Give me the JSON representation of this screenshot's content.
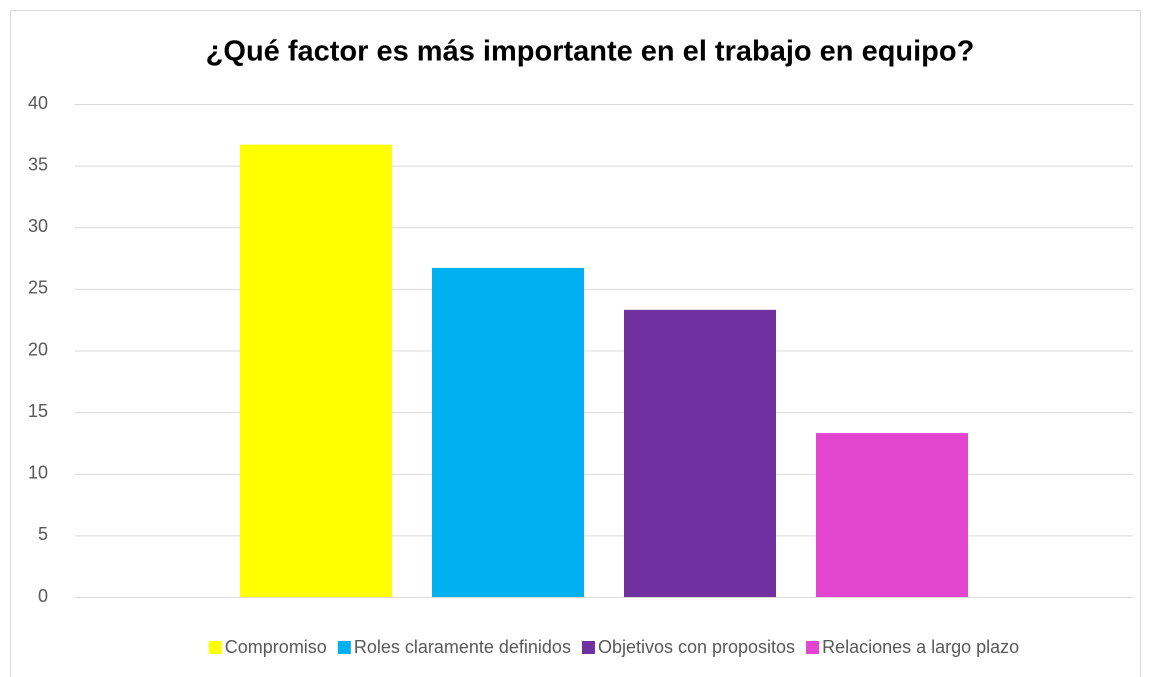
{
  "chart_data": {
    "type": "bar",
    "title": "¿Qué factor es más importante en el trabajo en equipo?",
    "categories": [
      null
    ],
    "series": [
      {
        "name": "Compromiso",
        "color": "#ffff00",
        "values": [
          36.7
        ]
      },
      {
        "name": "Roles claramente definidos",
        "color": "#00b0f0",
        "values": [
          26.7
        ]
      },
      {
        "name": "Objetivos con propositos",
        "color": "#7030a0",
        "values": [
          23.3
        ]
      },
      {
        "name": "Relaciones a largo plazo",
        "color": "#e246d0",
        "values": [
          13.3
        ]
      }
    ],
    "ylim": [
      0,
      40
    ],
    "yticks": [
      0,
      5,
      10,
      15,
      20,
      25,
      30,
      35,
      40
    ],
    "grid": true,
    "legend": "bottom"
  }
}
